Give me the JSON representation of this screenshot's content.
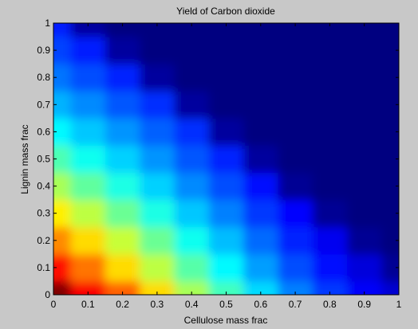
{
  "chart_data": {
    "type": "heatmap",
    "title": "Yield of Carbon dioxide",
    "xlabel": "Cellulose mass frac",
    "ylabel": "Lignin mass frac",
    "xlim": [
      0,
      1
    ],
    "ylim": [
      0,
      1
    ],
    "x_ticks": [
      "0",
      "0.1",
      "0.2",
      "0.3",
      "0.4",
      "0.5",
      "0.6",
      "0.7",
      "0.8",
      "0.9",
      "1"
    ],
    "y_ticks": [
      "0",
      "0.1",
      "0.2",
      "0.3",
      "0.4",
      "0.5",
      "0.6",
      "0.7",
      "0.8",
      "0.9",
      "1"
    ],
    "colormap": "jet",
    "value_range": [
      0,
      1
    ],
    "grid": false,
    "grid_x": [
      0,
      0.1,
      0.2,
      0.3,
      0.4,
      0.5,
      0.6,
      0.7,
      0.8,
      0.9,
      1.0
    ],
    "grid_y": [
      0,
      0.1,
      0.2,
      0.3,
      0.4,
      0.5,
      0.6,
      0.7,
      0.8,
      0.9,
      1.0
    ],
    "z": [
      [
        1.0,
        0.88,
        0.78,
        0.66,
        0.54,
        0.44,
        0.34,
        0.25,
        0.18,
        0.12,
        0.08
      ],
      [
        0.86,
        0.76,
        0.66,
        0.56,
        0.46,
        0.37,
        0.28,
        0.2,
        0.14,
        0.09,
        0.02
      ],
      [
        0.74,
        0.66,
        0.57,
        0.48,
        0.39,
        0.31,
        0.23,
        0.16,
        0.11,
        0.02,
        0.0
      ],
      [
        0.64,
        0.56,
        0.48,
        0.4,
        0.32,
        0.25,
        0.18,
        0.13,
        0.02,
        0.0,
        0.0
      ],
      [
        0.54,
        0.47,
        0.4,
        0.33,
        0.26,
        0.2,
        0.14,
        0.02,
        0.0,
        0.0,
        0.0
      ],
      [
        0.45,
        0.39,
        0.33,
        0.27,
        0.21,
        0.16,
        0.03,
        0.0,
        0.0,
        0.0,
        0.0
      ],
      [
        0.37,
        0.32,
        0.27,
        0.22,
        0.17,
        0.03,
        0.0,
        0.0,
        0.0,
        0.0,
        0.0
      ],
      [
        0.3,
        0.26,
        0.21,
        0.17,
        0.03,
        0.0,
        0.0,
        0.0,
        0.0,
        0.0,
        0.0
      ],
      [
        0.24,
        0.2,
        0.16,
        0.03,
        0.0,
        0.0,
        0.0,
        0.0,
        0.0,
        0.0,
        0.0
      ],
      [
        0.19,
        0.15,
        0.03,
        0.0,
        0.0,
        0.0,
        0.0,
        0.0,
        0.0,
        0.0,
        0.0
      ],
      [
        0.15,
        0.03,
        0.0,
        0.0,
        0.0,
        0.0,
        0.0,
        0.0,
        0.0,
        0.0,
        0.0
      ]
    ]
  }
}
